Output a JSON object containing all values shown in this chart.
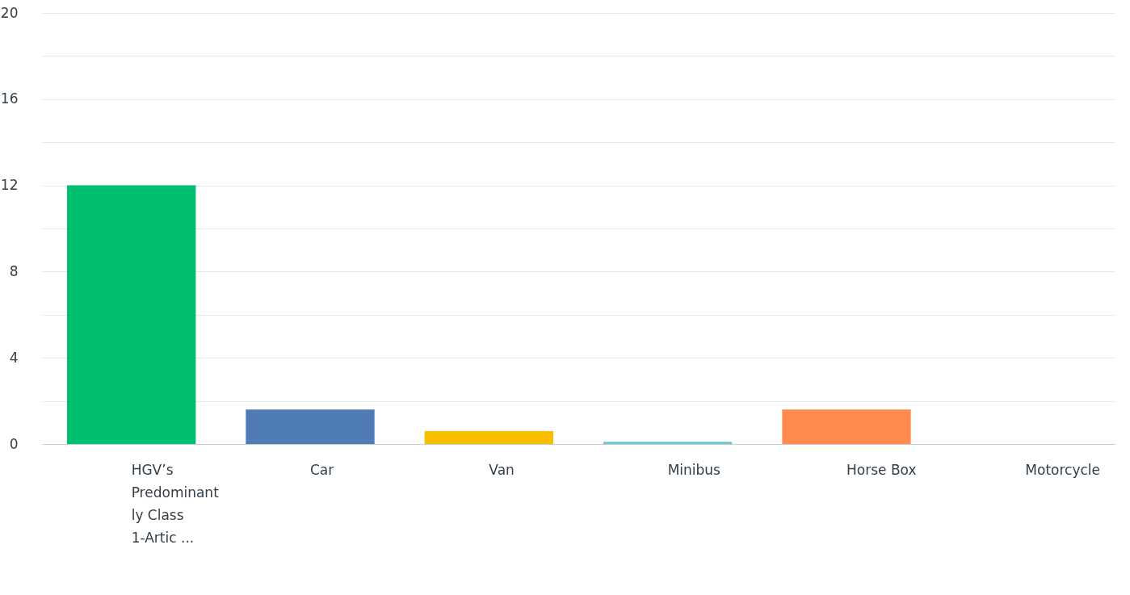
{
  "chart_data": {
    "type": "bar",
    "categories": [
      "HGV’s Predominantly Class 1-Artic ...",
      "Car",
      "Van",
      "Minibus",
      "Horse Box",
      "Motorcycle"
    ],
    "values": [
      12,
      1.6,
      0.6,
      0.1,
      1.6,
      0
    ],
    "colors": [
      "#00bf6f",
      "#507cb6",
      "#f9be00",
      "#6bc8cd",
      "#ff8b4f",
      "#d25f90"
    ],
    "ylim": [
      0,
      20
    ],
    "yticks": [
      0,
      {
        "value": 2,
        "label": null
      },
      4,
      {
        "value": 6,
        "label": null
      },
      8,
      {
        "value": 10,
        "label": null
      },
      12,
      {
        "value": 14,
        "label": null
      },
      16,
      {
        "value": 18,
        "label": null
      },
      20
    ],
    "grid": "y"
  }
}
